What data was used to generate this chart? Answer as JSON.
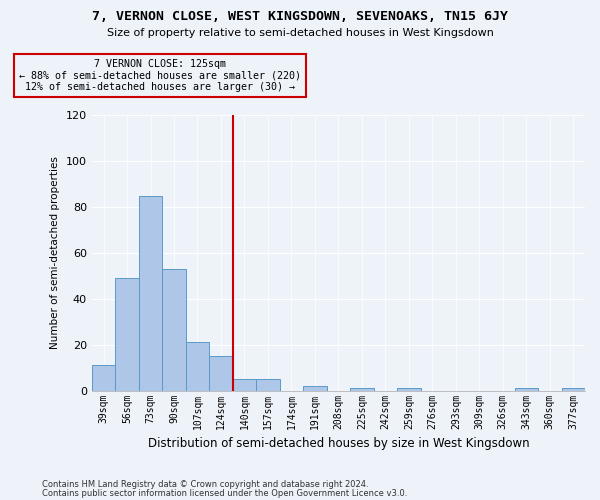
{
  "title": "7, VERNON CLOSE, WEST KINGSDOWN, SEVENOAKS, TN15 6JY",
  "subtitle": "Size of property relative to semi-detached houses in West Kingsdown",
  "xlabel": "Distribution of semi-detached houses by size in West Kingsdown",
  "ylabel": "Number of semi-detached properties",
  "footer_line1": "Contains HM Land Registry data © Crown copyright and database right 2024.",
  "footer_line2": "Contains public sector information licensed under the Open Government Licence v3.0.",
  "annotation_title": "7 VERNON CLOSE: 125sqm",
  "annotation_line1": "← 88% of semi-detached houses are smaller (220)",
  "annotation_line2": "12% of semi-detached houses are larger (30) →",
  "categories": [
    "39sqm",
    "56sqm",
    "73sqm",
    "90sqm",
    "107sqm",
    "124sqm",
    "140sqm",
    "157sqm",
    "174sqm",
    "191sqm",
    "208sqm",
    "225sqm",
    "242sqm",
    "259sqm",
    "276sqm",
    "293sqm",
    "309sqm",
    "326sqm",
    "343sqm",
    "360sqm",
    "377sqm"
  ],
  "values": [
    11,
    49,
    85,
    53,
    21,
    15,
    5,
    5,
    0,
    2,
    0,
    1,
    0,
    1,
    0,
    0,
    0,
    0,
    1,
    0,
    1
  ],
  "bar_color": "#aec6e8",
  "bar_edge_color": "#5a9ac8",
  "vline_x": 5.5,
  "vline_color": "#cc0000",
  "annotation_box_color": "#cc0000",
  "background_color": "#eef2f9",
  "ylim": [
    0,
    120
  ],
  "yticks": [
    0,
    20,
    40,
    60,
    80,
    100,
    120
  ]
}
